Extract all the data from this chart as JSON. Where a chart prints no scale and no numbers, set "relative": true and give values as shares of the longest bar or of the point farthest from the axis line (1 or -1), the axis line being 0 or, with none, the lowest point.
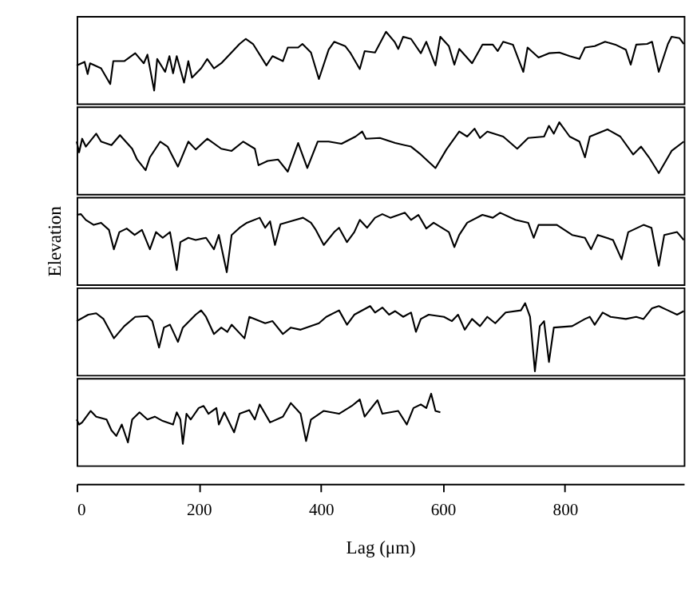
{
  "chart_data": [
    {
      "type": "line",
      "relative": true,
      "xlim": [
        0,
        995
      ],
      "tick_labels": false,
      "x": [
        0,
        13,
        18,
        22,
        40,
        55,
        60,
        78,
        96,
        110,
        116,
        127,
        132,
        145,
        152,
        158,
        164,
        176,
        183,
        189,
        204,
        214,
        225,
        237,
        267,
        277,
        289,
        311,
        321,
        338,
        346,
        363,
        370,
        384,
        397,
        413,
        422,
        440,
        449,
        464,
        472,
        489,
        507,
        521,
        527,
        535,
        548,
        564,
        573,
        588,
        596,
        610,
        619,
        627,
        648,
        665,
        682,
        690,
        699,
        715,
        732,
        739,
        757,
        774,
        791,
        808,
        824,
        833,
        849,
        866,
        883,
        900,
        908,
        917,
        935,
        943,
        954,
        969,
        975,
        988,
        995
      ],
      "series": [
        {
          "color": "#000000",
          "values": [
            0.53,
            0.58,
            0.41,
            0.56,
            0.49,
            0.27,
            0.59,
            0.59,
            0.7,
            0.56,
            0.68,
            0.18,
            0.62,
            0.44,
            0.66,
            0.42,
            0.66,
            0.29,
            0.59,
            0.36,
            0.49,
            0.62,
            0.49,
            0.56,
            0.83,
            0.9,
            0.83,
            0.53,
            0.66,
            0.59,
            0.78,
            0.78,
            0.83,
            0.71,
            0.34,
            0.75,
            0.86,
            0.8,
            0.7,
            0.48,
            0.73,
            0.71,
            1,
            0.86,
            0.76,
            0.93,
            0.9,
            0.7,
            0.86,
            0.53,
            0.93,
            0.8,
            0.54,
            0.76,
            0.56,
            0.82,
            0.82,
            0.73,
            0.86,
            0.82,
            0.44,
            0.78,
            0.64,
            0.7,
            0.71,
            0.66,
            0.62,
            0.78,
            0.8,
            0.86,
            0.82,
            0.75,
            0.54,
            0.82,
            0.83,
            0.86,
            0.44,
            0.83,
            0.93,
            0.91,
            0.83
          ]
        }
      ]
    },
    {
      "type": "line",
      "relative": true,
      "xlim": [
        0,
        995
      ],
      "tick_labels": false,
      "x": [
        0,
        4,
        9,
        15,
        32,
        40,
        57,
        71,
        91,
        99,
        113,
        120,
        137,
        149,
        166,
        183,
        195,
        214,
        237,
        254,
        273,
        292,
        298,
        313,
        330,
        346,
        363,
        378,
        395,
        413,
        434,
        457,
        468,
        474,
        497,
        522,
        548,
        564,
        588,
        606,
        627,
        640,
        652,
        661,
        673,
        699,
        722,
        740,
        766,
        774,
        782,
        791,
        808,
        824,
        833,
        841,
        870,
        891,
        912,
        925,
        938,
        954,
        975,
        995
      ],
      "series": [
        {
          "color": "#000000",
          "values": [
            0.73,
            0.58,
            0.77,
            0.66,
            0.84,
            0.73,
            0.68,
            0.82,
            0.63,
            0.48,
            0.33,
            0.51,
            0.73,
            0.66,
            0.38,
            0.73,
            0.62,
            0.77,
            0.63,
            0.6,
            0.73,
            0.63,
            0.4,
            0.46,
            0.48,
            0.31,
            0.71,
            0.36,
            0.73,
            0.73,
            0.7,
            0.8,
            0.87,
            0.77,
            0.78,
            0.71,
            0.66,
            0.55,
            0.36,
            0.62,
            0.87,
            0.8,
            0.91,
            0.78,
            0.87,
            0.8,
            0.63,
            0.78,
            0.8,
            0.95,
            0.84,
            1,
            0.8,
            0.73,
            0.51,
            0.8,
            0.9,
            0.8,
            0.55,
            0.66,
            0.51,
            0.29,
            0.6,
            0.73
          ]
        }
      ]
    },
    {
      "type": "line",
      "relative": true,
      "ylabel": "Elevation",
      "xlim": [
        0,
        995
      ],
      "tick_labels": false,
      "x": [
        0,
        7,
        15,
        28,
        40,
        53,
        61,
        70,
        82,
        95,
        107,
        120,
        130,
        141,
        153,
        164,
        170,
        183,
        195,
        212,
        225,
        233,
        246,
        254,
        267,
        279,
        300,
        309,
        317,
        325,
        334,
        359,
        371,
        384,
        392,
        405,
        422,
        430,
        443,
        455,
        464,
        476,
        489,
        501,
        514,
        538,
        548,
        560,
        573,
        585,
        610,
        619,
        627,
        640,
        665,
        682,
        694,
        719,
        740,
        749,
        757,
        787,
        812,
        833,
        843,
        854,
        879,
        893,
        904,
        929,
        942,
        954,
        963,
        984,
        995
      ],
      "series": [
        {
          "color": "#000000",
          "values": [
            0.97,
            0.98,
            0.9,
            0.83,
            0.86,
            0.76,
            0.49,
            0.73,
            0.78,
            0.69,
            0.76,
            0.49,
            0.73,
            0.65,
            0.73,
            0.2,
            0.59,
            0.65,
            0.62,
            0.65,
            0.49,
            0.69,
            0.17,
            0.69,
            0.79,
            0.86,
            0.93,
            0.79,
            0.88,
            0.55,
            0.84,
            0.9,
            0.93,
            0.86,
            0.76,
            0.55,
            0.73,
            0.79,
            0.59,
            0.73,
            0.9,
            0.79,
            0.93,
            0.98,
            0.93,
            1,
            0.9,
            0.97,
            0.78,
            0.86,
            0.73,
            0.52,
            0.69,
            0.86,
            0.97,
            0.93,
            1,
            0.9,
            0.86,
            0.65,
            0.83,
            0.83,
            0.69,
            0.65,
            0.49,
            0.69,
            0.62,
            0.35,
            0.73,
            0.83,
            0.79,
            0.26,
            0.69,
            0.73,
            0.62
          ]
        }
      ]
    },
    {
      "type": "line",
      "relative": true,
      "xlim": [
        0,
        995
      ],
      "tick_labels": false,
      "x": [
        0,
        19,
        32,
        44,
        61,
        78,
        96,
        116,
        124,
        135,
        143,
        153,
        166,
        174,
        195,
        204,
        212,
        225,
        237,
        247,
        254,
        275,
        283,
        309,
        321,
        338,
        351,
        367,
        397,
        409,
        430,
        443,
        455,
        481,
        489,
        501,
        512,
        522,
        535,
        548,
        556,
        564,
        577,
        602,
        615,
        625,
        636,
        648,
        661,
        673,
        686,
        703,
        728,
        735,
        743,
        751,
        759,
        766,
        774,
        782,
        812,
        833,
        841,
        849,
        862,
        875,
        900,
        917,
        929,
        943,
        954,
        969,
        984,
        995
      ],
      "series": [
        {
          "color": "#000000",
          "values": [
            0.75,
            0.84,
            0.86,
            0.78,
            0.51,
            0.68,
            0.81,
            0.82,
            0.75,
            0.38,
            0.66,
            0.7,
            0.46,
            0.66,
            0.84,
            0.9,
            0.81,
            0.57,
            0.66,
            0.6,
            0.7,
            0.51,
            0.81,
            0.72,
            0.75,
            0.57,
            0.66,
            0.63,
            0.72,
            0.81,
            0.9,
            0.7,
            0.84,
            0.96,
            0.87,
            0.94,
            0.84,
            0.89,
            0.81,
            0.87,
            0.6,
            0.78,
            0.84,
            0.81,
            0.75,
            0.84,
            0.63,
            0.78,
            0.68,
            0.81,
            0.72,
            0.87,
            0.9,
            1,
            0.81,
            0.05,
            0.68,
            0.75,
            0.18,
            0.66,
            0.68,
            0.78,
            0.81,
            0.7,
            0.87,
            0.81,
            0.78,
            0.81,
            0.78,
            0.93,
            0.96,
            0.9,
            0.84,
            0.89
          ]
        }
      ]
    },
    {
      "type": "line",
      "relative": true,
      "xlabel": "Lag (μm)",
      "xlim": [
        0,
        995
      ],
      "xticks": [
        0,
        200,
        400,
        600,
        800
      ],
      "tick_labels": "x",
      "x": [
        0,
        4,
        9,
        23,
        32,
        49,
        57,
        65,
        74,
        84,
        91,
        103,
        116,
        128,
        141,
        158,
        164,
        170,
        174,
        180,
        187,
        200,
        208,
        216,
        229,
        233,
        242,
        258,
        267,
        283,
        292,
        300,
        317,
        338,
        351,
        367,
        376,
        384,
        405,
        430,
        451,
        464,
        472,
        493,
        501,
        527,
        541,
        552,
        564,
        573,
        581,
        588,
        596
      ],
      "series": [
        {
          "color": "#000000",
          "values": [
            0.64,
            0.57,
            0.6,
            0.76,
            0.68,
            0.64,
            0.49,
            0.41,
            0.57,
            0.32,
            0.64,
            0.74,
            0.64,
            0.68,
            0.62,
            0.57,
            0.74,
            0.64,
            0.3,
            0.72,
            0.64,
            0.8,
            0.83,
            0.72,
            0.8,
            0.57,
            0.74,
            0.46,
            0.72,
            0.77,
            0.64,
            0.85,
            0.6,
            0.68,
            0.87,
            0.72,
            0.34,
            0.64,
            0.76,
            0.72,
            0.83,
            0.92,
            0.68,
            0.91,
            0.72,
            0.76,
            0.57,
            0.8,
            0.85,
            0.8,
            1,
            0.76,
            0.74
          ]
        }
      ]
    }
  ]
}
